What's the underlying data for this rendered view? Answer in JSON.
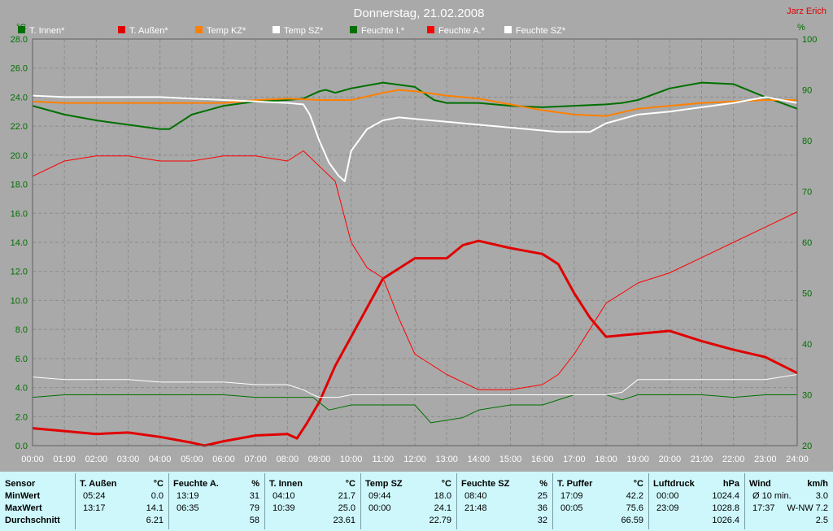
{
  "chart_data": {
    "type": "line",
    "title": "Donnerstag, 21.02.2008",
    "author": "Jarz Erich",
    "y_left_unit": "°C",
    "y_right_unit": "%",
    "ylim_left": [
      0,
      28
    ],
    "ylim_right": [
      20,
      100
    ],
    "xlim": [
      0,
      24
    ],
    "grid": true,
    "x_ticks": [
      "00:00",
      "01:00",
      "02:00",
      "03:00",
      "04:00",
      "05:00",
      "06:00",
      "07:00",
      "08:00",
      "09:00",
      "10:00",
      "11:00",
      "12:00",
      "13:00",
      "14:00",
      "15:00",
      "16:00",
      "17:00",
      "18:00",
      "19:00",
      "20:00",
      "21:00",
      "22:00",
      "23:00",
      "24:00"
    ],
    "y_left_ticks": [
      "0.0",
      "2.0",
      "4.0",
      "6.0",
      "8.0",
      "10.0",
      "12.0",
      "14.0",
      "16.0",
      "18.0",
      "20.0",
      "22.0",
      "24.0",
      "26.0",
      "28.0"
    ],
    "y_right_ticks": [
      "20",
      "30",
      "40",
      "50",
      "60",
      "70",
      "80",
      "90",
      "100"
    ],
    "legend_position": "top",
    "series": [
      {
        "name": "T. Innen*",
        "color": "#007000",
        "width": 2,
        "axis": "left",
        "x": [
          0,
          1,
          2,
          3,
          4,
          4.3,
          5,
          6,
          7,
          8,
          8.5,
          9,
          9.2,
          9.5,
          10,
          11,
          12,
          12.6,
          13,
          14,
          15,
          16,
          17,
          18,
          18.5,
          19,
          20,
          21,
          22,
          23,
          24
        ],
        "y": [
          23.4,
          22.8,
          22.4,
          22.1,
          21.8,
          21.8,
          22.8,
          23.4,
          23.7,
          23.8,
          23.9,
          24.4,
          24.5,
          24.3,
          24.6,
          25,
          24.7,
          23.8,
          23.6,
          23.6,
          23.4,
          23.3,
          23.4,
          23.5,
          23.6,
          23.8,
          24.6,
          25,
          24.9,
          24,
          23.2
        ]
      },
      {
        "name": "T. Außen*",
        "color": "#e00000",
        "width": 3,
        "axis": "left",
        "x": [
          0,
          1,
          2,
          3,
          4,
          5,
          5.4,
          6,
          7,
          8,
          8.3,
          8.6,
          9,
          9.5,
          10,
          11,
          12,
          13,
          13.5,
          14,
          15,
          16,
          16.5,
          17,
          17.5,
          18,
          19,
          20,
          21,
          22,
          23,
          24
        ],
        "y": [
          1.2,
          1,
          0.8,
          0.9,
          0.6,
          0.2,
          0,
          0.3,
          0.7,
          0.8,
          0.5,
          1.5,
          3,
          5.5,
          7.5,
          11.5,
          12.9,
          12.9,
          13.8,
          14.1,
          13.6,
          13.2,
          12.5,
          10.5,
          8.8,
          7.5,
          7.7,
          7.9,
          7.2,
          6.6,
          6.1,
          5
        ]
      },
      {
        "name": "Temp KZ*",
        "color": "#ff8000",
        "width": 2,
        "axis": "left",
        "x": [
          0,
          1,
          2,
          3,
          4,
          5,
          6,
          7,
          8,
          9,
          10,
          11,
          11.5,
          12,
          13,
          14,
          15,
          16,
          17,
          18,
          19,
          20,
          21,
          22,
          23,
          24
        ],
        "y": [
          23.7,
          23.6,
          23.6,
          23.6,
          23.6,
          23.6,
          23.6,
          23.8,
          23.9,
          23.8,
          23.8,
          24.3,
          24.5,
          24.4,
          24.1,
          23.9,
          23.5,
          23.1,
          22.8,
          22.7,
          23.2,
          23.4,
          23.6,
          23.7,
          23.8,
          23.8
        ]
      },
      {
        "name": "Temp SZ*",
        "color": "#ffffff",
        "width": 2,
        "axis": "left",
        "x": [
          0,
          1,
          2,
          3,
          4,
          5,
          6,
          7,
          8,
          8.5,
          8.7,
          9,
          9.3,
          9.6,
          9.8,
          10,
          10.5,
          11,
          11.5,
          12,
          13,
          14,
          15,
          16,
          16.5,
          17,
          17.5,
          18,
          19,
          20,
          21,
          22,
          23,
          24
        ],
        "y": [
          24.1,
          24,
          24,
          24,
          24,
          23.9,
          23.8,
          23.7,
          23.6,
          23.5,
          22.8,
          21,
          19.5,
          18.6,
          18.2,
          20.3,
          21.8,
          22.4,
          22.6,
          22.5,
          22.3,
          22.1,
          21.9,
          21.7,
          21.6,
          21.6,
          21.6,
          22.2,
          22.8,
          23,
          23.3,
          23.6,
          24,
          23.6
        ]
      },
      {
        "name": "Feuchte I.*",
        "color": "#007000",
        "width": 1,
        "axis": "right",
        "x": [
          0,
          1,
          2,
          3,
          4,
          5,
          6,
          7,
          8,
          8.8,
          9.3,
          10,
          11,
          12,
          12.5,
          13,
          13.5,
          14,
          15,
          16,
          17,
          18,
          18.5,
          19,
          20,
          21,
          22,
          23,
          24
        ],
        "y": [
          29.5,
          30,
          30,
          30,
          30,
          30,
          30,
          29.5,
          29.5,
          29.5,
          27,
          28,
          28,
          28,
          24.5,
          25,
          25.5,
          27,
          28,
          28,
          30,
          30,
          29,
          30,
          30,
          30,
          29.5,
          30,
          30
        ]
      },
      {
        "name": "Feuchte A.*",
        "color": "#ff0000",
        "width": 1,
        "axis": "right",
        "x": [
          0,
          1,
          2,
          3,
          4,
          5,
          6,
          7,
          8,
          8.5,
          9,
          9.5,
          10,
          10.5,
          11,
          11.5,
          12,
          13,
          14,
          15,
          16,
          16.5,
          17,
          17.5,
          18,
          19,
          20,
          21,
          22,
          23,
          24
        ],
        "y": [
          73,
          76,
          77,
          77,
          76,
          76,
          77,
          77,
          76,
          78,
          75,
          72,
          60,
          55,
          53,
          45,
          38,
          34,
          31,
          31,
          32,
          34,
          38,
          43,
          48,
          52,
          54,
          57,
          60,
          63,
          66
        ]
      },
      {
        "name": "Feuchte SZ*",
        "color": "#ffffff",
        "width": 1,
        "axis": "right",
        "x": [
          0,
          1,
          2,
          3,
          4,
          5,
          6,
          7,
          8,
          8.5,
          8.8,
          9,
          9.6,
          10,
          11,
          12,
          13,
          14,
          15,
          16,
          17,
          18,
          18.5,
          19,
          20,
          21,
          22,
          23,
          24
        ],
        "y": [
          33.5,
          33,
          33,
          33,
          32.5,
          32.5,
          32.5,
          32,
          32,
          31,
          30,
          29.5,
          29.5,
          30,
          30,
          30,
          30,
          30,
          30,
          30,
          30,
          30,
          30.5,
          33,
          33,
          33,
          33,
          33,
          34
        ]
      }
    ]
  },
  "stats": {
    "row_labels": [
      "Sensor",
      "MinWert",
      "MaxWert",
      "Durchschnitt"
    ],
    "columns": [
      {
        "name": "T. Außen",
        "unit": "°C",
        "min_time": "05:24",
        "min_value": "0.0",
        "max_time": "13:17",
        "max_value": "14.1",
        "avg": "6.21"
      },
      {
        "name": "Feuchte A.",
        "unit": "%",
        "min_time": "13:19",
        "min_value": "31",
        "max_time": "06:35",
        "max_value": "79",
        "avg": "58"
      },
      {
        "name": "T. Innen",
        "unit": "°C",
        "min_time": "04:10",
        "min_value": "21.7",
        "max_time": "10:39",
        "max_value": "25.0",
        "avg": "23.61"
      },
      {
        "name": "Temp SZ",
        "unit": "°C",
        "min_time": "09:44",
        "min_value": "18.0",
        "max_time": "00:00",
        "max_value": "24.1",
        "avg": "22.79"
      },
      {
        "name": "Feuchte SZ",
        "unit": "%",
        "min_time": "08:40",
        "min_value": "25",
        "max_time": "21:48",
        "max_value": "36",
        "avg": "32"
      },
      {
        "name": "T. Puffer",
        "unit": "°C",
        "min_time": "17:09",
        "min_value": "42.2",
        "max_time": "00:05",
        "max_value": "75.6",
        "avg": "66.59"
      },
      {
        "name": "Luftdruck",
        "unit": "hPa",
        "min_time": "00:00",
        "min_value": "1024.4",
        "max_time": "23:09",
        "max_value": "1028.8",
        "avg": "1026.4"
      },
      {
        "name": "Wind",
        "unit": "km/h",
        "min_time": "Ø 10 min.",
        "min_value": "3.0",
        "max_time": "17:37",
        "max_value": "W-NW 7.2",
        "avg": "2.5"
      }
    ]
  }
}
